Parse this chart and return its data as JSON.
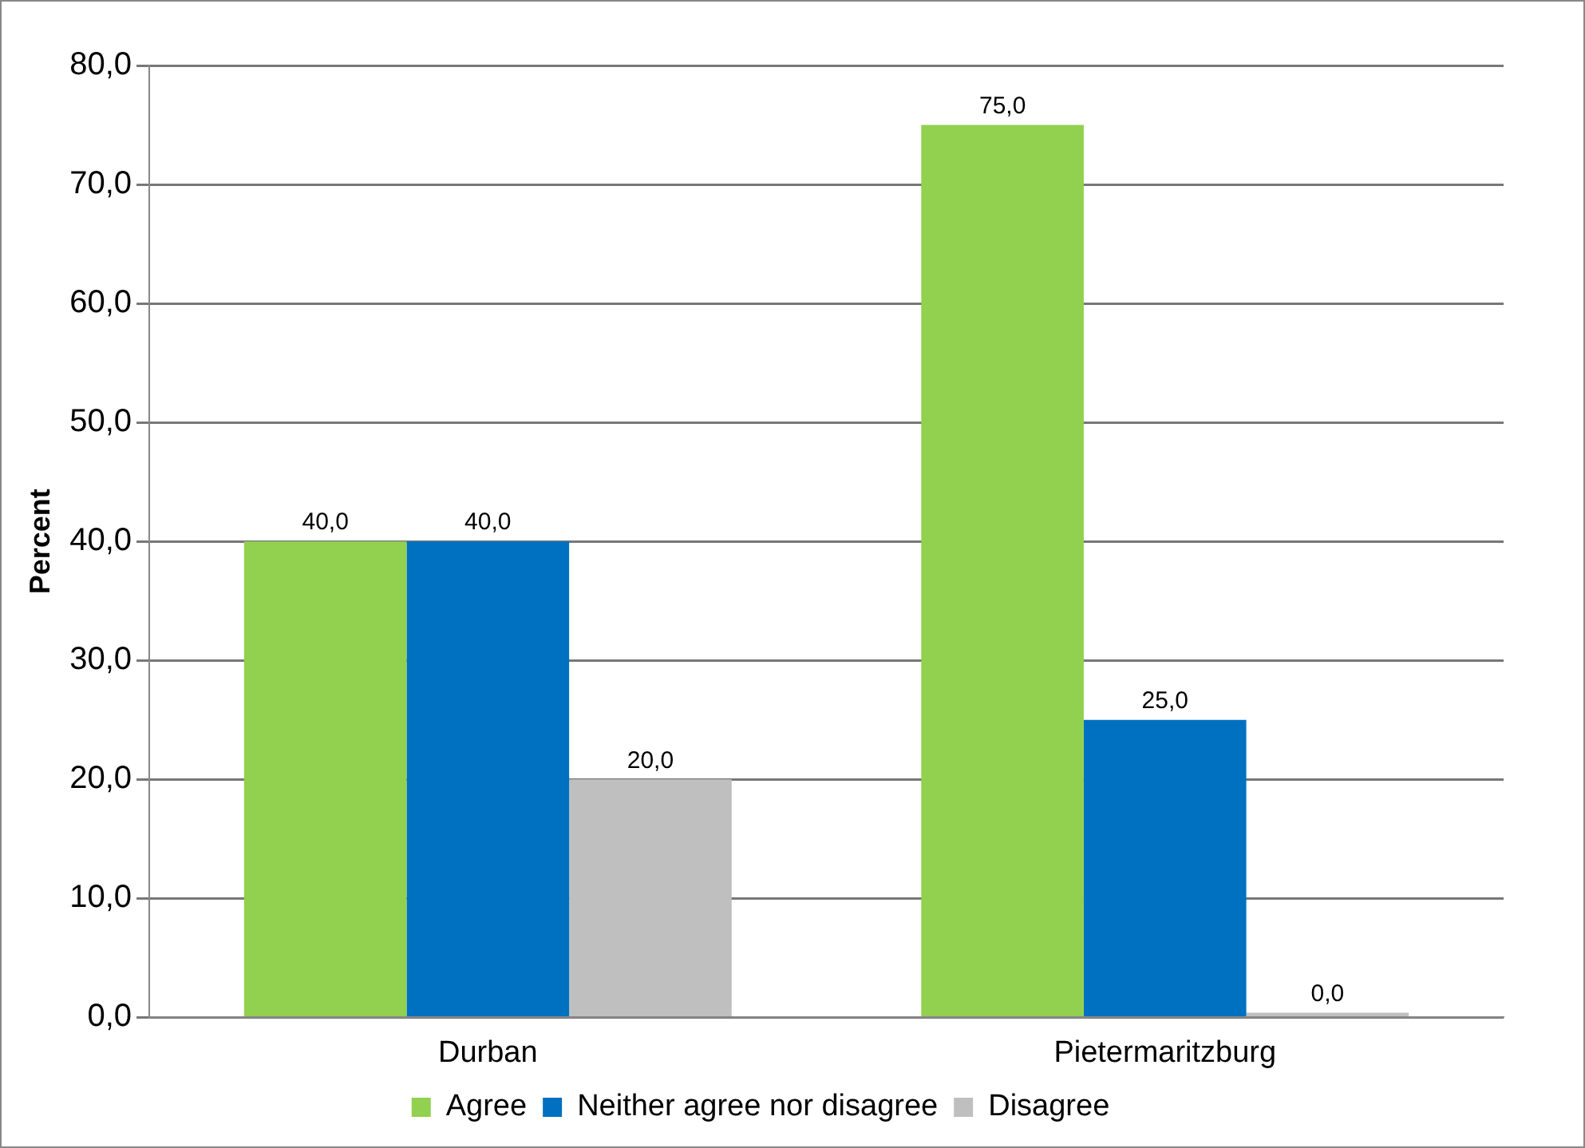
{
  "chart_data": {
    "type": "bar",
    "ylabel": "Percent",
    "categories": [
      "Durban",
      "Pietermaritzburg"
    ],
    "series": [
      {
        "name": "Agree",
        "color": "#92d050",
        "values": [
          40,
          75
        ],
        "value_labels": [
          "40,0",
          "75,0"
        ]
      },
      {
        "name": "Neither agree nor disagree",
        "color": "#0070c0",
        "values": [
          40,
          25
        ],
        "value_labels": [
          "40,0",
          "25,0"
        ]
      },
      {
        "name": "Disagree",
        "color": "#bfbfbf",
        "values": [
          20,
          0
        ],
        "value_labels": [
          "20,0",
          "0,0"
        ]
      }
    ],
    "ylim": [
      0,
      80
    ],
    "yticks": [
      {
        "value": 0,
        "label": "0,0"
      },
      {
        "value": 10,
        "label": "10,0"
      },
      {
        "value": 20,
        "label": "20,0"
      },
      {
        "value": 30,
        "label": "30,0"
      },
      {
        "value": 40,
        "label": "40,0"
      },
      {
        "value": 50,
        "label": "50,0"
      },
      {
        "value": 60,
        "label": "60,0"
      },
      {
        "value": 70,
        "label": "70,0"
      },
      {
        "value": 80,
        "label": "80,0"
      }
    ],
    "grid": "y",
    "legend": "bottom"
  }
}
